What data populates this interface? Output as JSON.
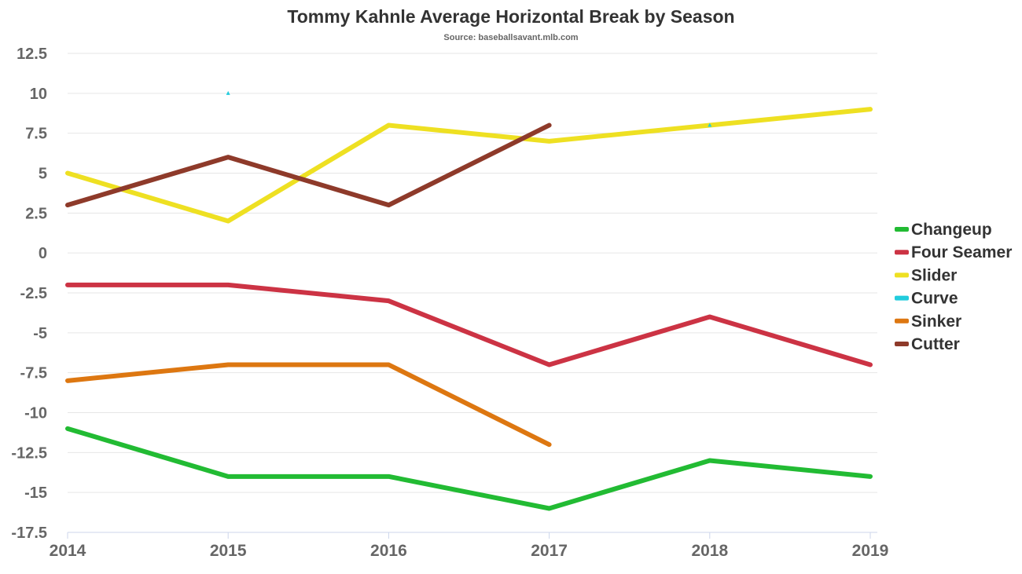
{
  "chart_data": {
    "type": "line",
    "title": "Tommy Kahnle Average Horizontal Break by Season",
    "subtitle": "Source: baseballsavant.mlb.com",
    "xlabel": "",
    "ylabel": "",
    "x": [
      "2014",
      "2015",
      "2016",
      "2017",
      "2018",
      "2019"
    ],
    "ylim": [
      -17.5,
      12.5
    ],
    "yticks": [
      12.5,
      10,
      7.5,
      5,
      2.5,
      0,
      -2.5,
      -5,
      -7.5,
      -10,
      -12.5,
      -15,
      -17.5
    ],
    "grid": true,
    "legend_position": "right",
    "series": [
      {
        "name": "Changeup",
        "color": "#22bb33",
        "values": [
          -11,
          -14,
          -14,
          -16,
          -13,
          -14
        ]
      },
      {
        "name": "Four Seamer",
        "color": "#cc3344",
        "values": [
          -2,
          -2,
          -3,
          -7,
          -4,
          -7
        ]
      },
      {
        "name": "Slider",
        "color": "#eee022",
        "values": [
          5,
          2,
          8,
          7,
          8,
          9
        ]
      },
      {
        "name": "Curve",
        "color": "#22ccdd",
        "values": [
          null,
          10,
          null,
          null,
          8,
          null
        ]
      },
      {
        "name": "Sinker",
        "color": "#dd7711",
        "values": [
          -8,
          -7,
          -7,
          -12,
          null,
          null
        ]
      },
      {
        "name": "Cutter",
        "color": "#8e3a2a",
        "values": [
          3,
          6,
          3,
          8,
          null,
          null
        ]
      }
    ]
  }
}
